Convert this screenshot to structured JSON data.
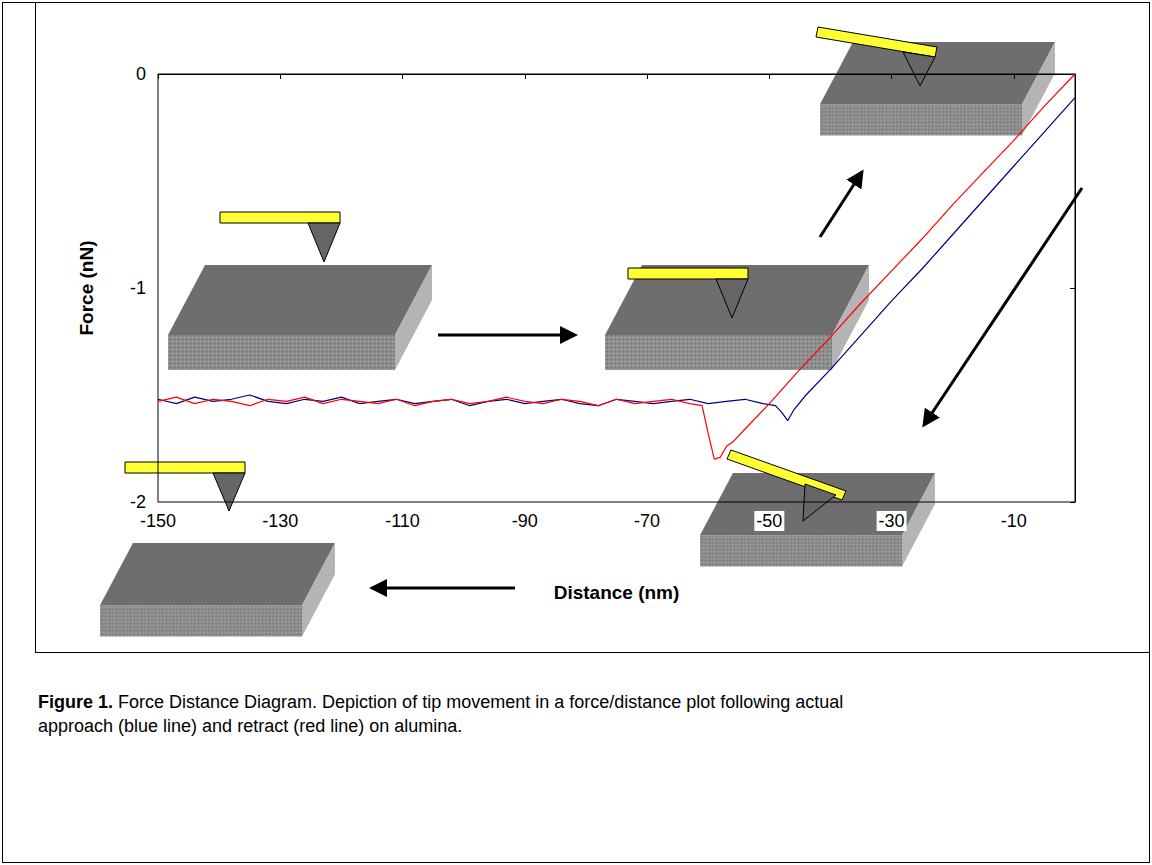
{
  "chart_data": {
    "type": "line",
    "x_label": "Distance (nm)",
    "y_label": "Force (nN)",
    "xlim": [
      -150,
      0
    ],
    "xticks": [
      -150,
      -130,
      -110,
      -90,
      -70,
      -50,
      -30,
      -10
    ],
    "ylim": [
      -2,
      0
    ],
    "yticks": [
      -2,
      -1,
      0
    ],
    "grid": false,
    "caption": {
      "label": "Figure 1.",
      "text": "Force Distance Diagram. Depiction of tip movement in a force/distance plot following actual approach (blue line) and retract (red line) on alumina."
    },
    "series": [
      {
        "color": "#000080",
        "line_style": "solid",
        "x": [
          -150,
          -147,
          -144,
          -141,
          -138,
          -135,
          -132,
          -129,
          -126,
          -123,
          -120,
          -117,
          -114,
          -111,
          -108,
          -105,
          -102,
          -99,
          -96,
          -93,
          -90,
          -87,
          -84,
          -81,
          -78,
          -75,
          -72,
          -69,
          -66,
          -63,
          -60,
          -57,
          -54,
          -51,
          -49,
          -48,
          -47,
          -46,
          -44,
          -40,
          -35,
          -30,
          -25,
          -20,
          -15,
          -10,
          -5,
          0
        ],
        "values": [
          -1.52,
          -1.54,
          -1.51,
          -1.53,
          -1.52,
          -1.5,
          -1.53,
          -1.54,
          -1.52,
          -1.53,
          -1.51,
          -1.54,
          -1.53,
          -1.52,
          -1.54,
          -1.53,
          -1.52,
          -1.55,
          -1.53,
          -1.52,
          -1.54,
          -1.53,
          -1.52,
          -1.54,
          -1.55,
          -1.52,
          -1.53,
          -1.54,
          -1.53,
          -1.52,
          -1.54,
          -1.53,
          -1.52,
          -1.54,
          -1.55,
          -1.58,
          -1.62,
          -1.57,
          -1.5,
          -1.38,
          -1.22,
          -1.06,
          -0.91,
          -0.75,
          -0.59,
          -0.43,
          -0.27,
          -0.11
        ]
      },
      {
        "color": "#ff0000",
        "line_style": "solid",
        "x": [
          -150,
          -147,
          -144,
          -141,
          -138,
          -135,
          -132,
          -129,
          -126,
          -123,
          -120,
          -117,
          -114,
          -111,
          -108,
          -105,
          -102,
          -99,
          -96,
          -93,
          -90,
          -87,
          -84,
          -81,
          -78,
          -75,
          -72,
          -69,
          -66,
          -63,
          -61,
          -60,
          -59,
          -58,
          -57,
          -56,
          -54,
          -50,
          -45,
          -40,
          -35,
          -30,
          -25,
          -20,
          -15,
          -10,
          -5,
          0
        ],
        "values": [
          -1.53,
          -1.51,
          -1.54,
          -1.52,
          -1.53,
          -1.55,
          -1.52,
          -1.53,
          -1.51,
          -1.54,
          -1.52,
          -1.53,
          -1.54,
          -1.52,
          -1.55,
          -1.53,
          -1.52,
          -1.54,
          -1.53,
          -1.51,
          -1.53,
          -1.54,
          -1.52,
          -1.53,
          -1.55,
          -1.52,
          -1.54,
          -1.53,
          -1.52,
          -1.54,
          -1.55,
          -1.68,
          -1.8,
          -1.79,
          -1.74,
          -1.72,
          -1.66,
          -1.54,
          -1.38,
          -1.23,
          -1.07,
          -0.92,
          -0.77,
          -0.61,
          -0.46,
          -0.31,
          -0.15,
          0
        ]
      }
    ]
  }
}
